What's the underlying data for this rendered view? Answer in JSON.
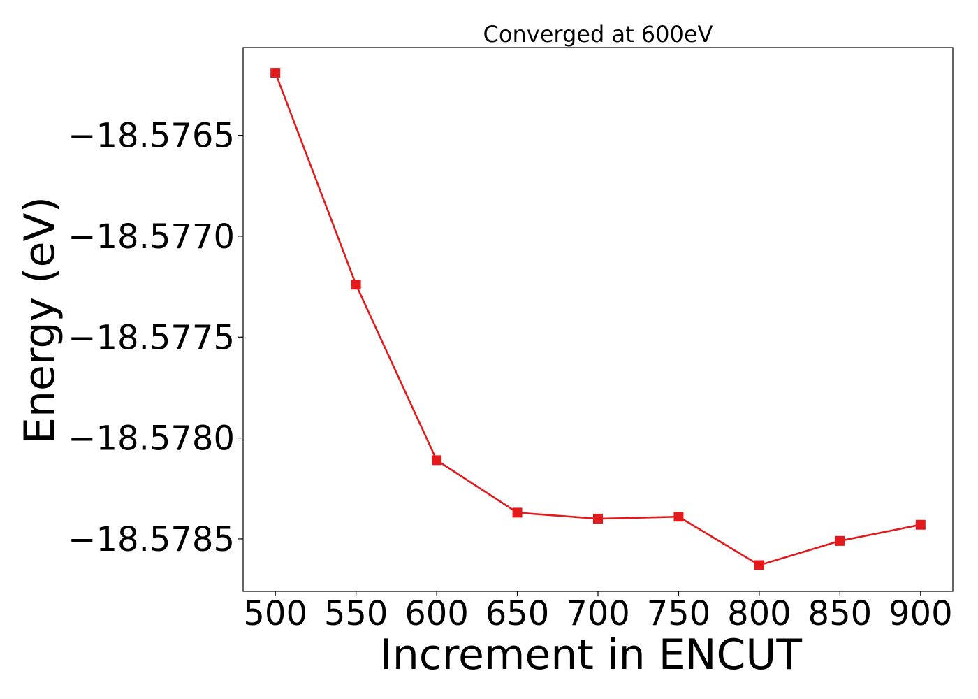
{
  "chart_data": {
    "type": "line",
    "title": "Converged at 600eV",
    "xlabel": "Increment in ENCUT",
    "ylabel": "Energy (eV)",
    "x": [
      500,
      550,
      600,
      650,
      700,
      750,
      800,
      850,
      900
    ],
    "series": [
      {
        "values": [
          -18.57619,
          -18.57724,
          -18.57811,
          -18.57837,
          -18.5784,
          -18.57839,
          -18.57863,
          -18.57851,
          -18.57843
        ],
        "color": "#e31a1c",
        "marker": "square"
      }
    ],
    "xticks": [
      500,
      550,
      600,
      650,
      700,
      750,
      800,
      850,
      900
    ],
    "xtick_labels": [
      "500",
      "550",
      "600",
      "650",
      "700",
      "750",
      "800",
      "850",
      "900"
    ],
    "yticks": [
      -18.5765,
      -18.577,
      -18.5775,
      -18.578,
      -18.5785
    ],
    "ytick_labels": [
      "−18.5765",
      "−18.5770",
      "−18.5775",
      "−18.5780",
      "−18.5785"
    ],
    "xlim": [
      480,
      920
    ],
    "ylim": [
      -18.57876,
      -18.576065
    ],
    "grid": false,
    "legend": "none"
  }
}
